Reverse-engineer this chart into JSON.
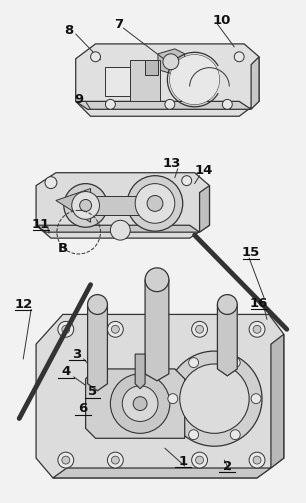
{
  "bg": "#f2f2f2",
  "lc": "#333333",
  "lc_thin": "#555555",
  "fw": 3.06,
  "fh": 5.03,
  "dpi": 100,
  "underlined": [
    "1",
    "2",
    "3",
    "4",
    "5",
    "6",
    "11",
    "12",
    "15",
    "16"
  ]
}
